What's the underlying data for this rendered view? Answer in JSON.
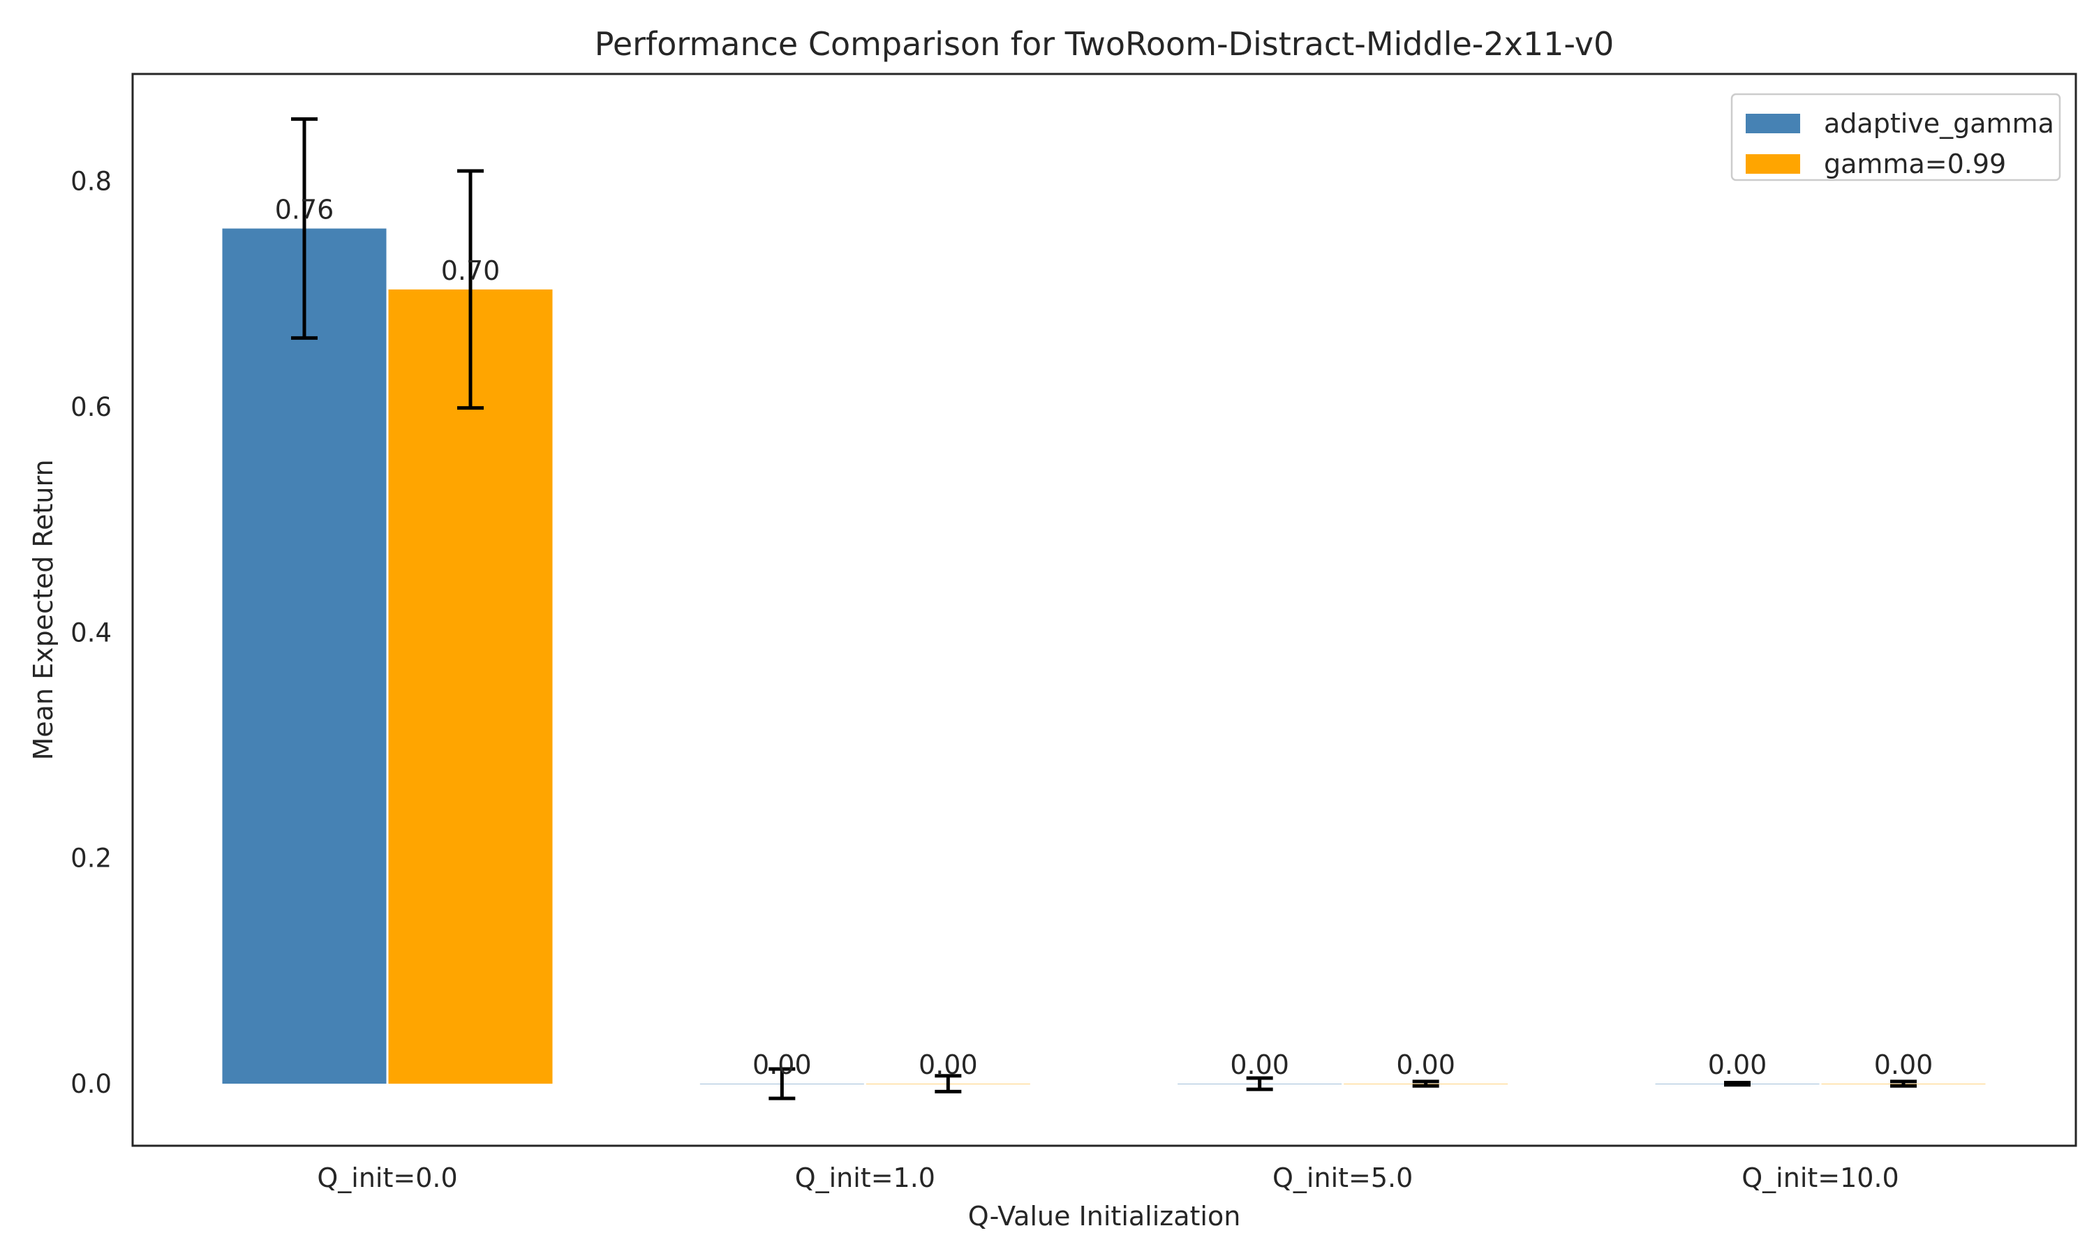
{
  "chart_data": {
    "type": "bar",
    "title": "Performance Comparison for TwoRoom-Distract-Middle-2x11-v0",
    "xlabel": "Q-Value Initialization",
    "ylabel": "Mean Expected Return",
    "categories": [
      "Q_init=0.0",
      "Q_init=1.0",
      "Q_init=5.0",
      "Q_init=10.0"
    ],
    "ylim": [
      -0.055,
      0.895
    ],
    "yticks": [
      0.0,
      0.2,
      0.4,
      0.6,
      0.8
    ],
    "ytick_labels": [
      "0.0",
      "0.2",
      "0.4",
      "0.6",
      "0.8"
    ],
    "grid": false,
    "legend_position": "top-right",
    "series": [
      {
        "name": "adaptive_gamma",
        "color": "#4682B4",
        "values": [
          0.758,
          0.0,
          0.0,
          0.0
        ],
        "errors": [
          0.097,
          0.013,
          0.005,
          0.001
        ],
        "labels": [
          "0.76",
          "0.00",
          "0.00",
          "0.00"
        ]
      },
      {
        "name": "gamma=0.99",
        "color": "#FFA500",
        "values": [
          0.704,
          0.0,
          0.0,
          0.0
        ],
        "errors": [
          0.105,
          0.007,
          0.002,
          0.002
        ],
        "labels": [
          "0.70",
          "0.00",
          "0.00",
          "0.00"
        ]
      }
    ]
  }
}
